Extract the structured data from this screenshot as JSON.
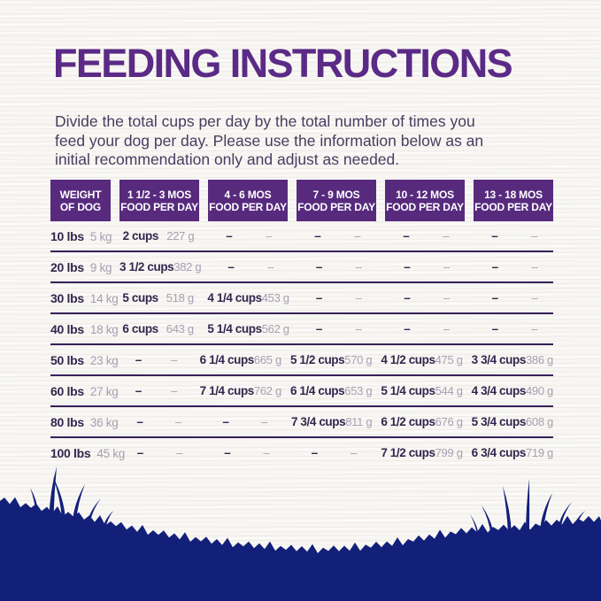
{
  "page": {
    "title": "FEEDING INSTRUCTIONS",
    "intro_lines": [
      "Divide the total cups per day by the total number of times you",
      "feed your dog per day. Please use the information below as an",
      "initial recommendation only and adjust as needed."
    ]
  },
  "table": {
    "headers": [
      {
        "line1": "WEIGHT",
        "line2": "OF DOG"
      },
      {
        "line1": "1 1/2 - 3 MOS",
        "line2": "FOOD PER DAY"
      },
      {
        "line1": "4 - 6 MOS",
        "line2": "FOOD PER DAY"
      },
      {
        "line1": "7 - 9 MOS",
        "line2": "FOOD PER DAY"
      },
      {
        "line1": "10 - 12 MOS",
        "line2": "FOOD PER DAY"
      },
      {
        "line1": "13 - 18 MOS",
        "line2": "FOOD PER DAY"
      }
    ],
    "rows": [
      {
        "lbs": "10 lbs",
        "kg": "5 kg",
        "cells": [
          {
            "cups": "2 cups",
            "grams": "227 g"
          },
          {
            "cups": "–",
            "grams": "–"
          },
          {
            "cups": "–",
            "grams": "–"
          },
          {
            "cups": "–",
            "grams": "–"
          },
          {
            "cups": "–",
            "grams": "–"
          }
        ]
      },
      {
        "lbs": "20 lbs",
        "kg": "9 kg",
        "cells": [
          {
            "cups": "3 1/2 cups",
            "grams": "382 g"
          },
          {
            "cups": "–",
            "grams": "–"
          },
          {
            "cups": "–",
            "grams": "–"
          },
          {
            "cups": "–",
            "grams": "–"
          },
          {
            "cups": "–",
            "grams": "–"
          }
        ]
      },
      {
        "lbs": "30 lbs",
        "kg": "14 kg",
        "cells": [
          {
            "cups": "5 cups",
            "grams": "518 g"
          },
          {
            "cups": "4 1/4 cups",
            "grams": "453 g"
          },
          {
            "cups": "–",
            "grams": "–"
          },
          {
            "cups": "–",
            "grams": "–"
          },
          {
            "cups": "–",
            "grams": "–"
          }
        ]
      },
      {
        "lbs": "40 lbs",
        "kg": "18 kg",
        "cells": [
          {
            "cups": "6 cups",
            "grams": "643 g"
          },
          {
            "cups": "5 1/4 cups",
            "grams": "562 g"
          },
          {
            "cups": "–",
            "grams": "–"
          },
          {
            "cups": "–",
            "grams": "–"
          },
          {
            "cups": "–",
            "grams": "–"
          }
        ]
      },
      {
        "lbs": "50 lbs",
        "kg": "23 kg",
        "cells": [
          {
            "cups": "–",
            "grams": "–"
          },
          {
            "cups": "6 1/4 cups",
            "grams": "665 g"
          },
          {
            "cups": "5 1/2 cups",
            "grams": "570 g"
          },
          {
            "cups": "4 1/2 cups",
            "grams": "475 g"
          },
          {
            "cups": "3 3/4 cups",
            "grams": "386 g"
          }
        ]
      },
      {
        "lbs": "60 lbs",
        "kg": "27 kg",
        "cells": [
          {
            "cups": "–",
            "grams": "–"
          },
          {
            "cups": "7 1/4 cups",
            "grams": "762 g"
          },
          {
            "cups": "6 1/4 cups",
            "grams": "653 g"
          },
          {
            "cups": "5 1/4 cups",
            "grams": "544 g"
          },
          {
            "cups": "4 3/4 cups",
            "grams": "490 g"
          }
        ]
      },
      {
        "lbs": "80 lbs",
        "kg": "36 kg",
        "cells": [
          {
            "cups": "–",
            "grams": "–"
          },
          {
            "cups": "–",
            "grams": "–"
          },
          {
            "cups": "7 3/4 cups",
            "grams": "811 g"
          },
          {
            "cups": "6 1/2 cups",
            "grams": "676 g"
          },
          {
            "cups": "5 3/4 cups",
            "grams": "608 g"
          }
        ]
      },
      {
        "lbs": "100 lbs",
        "kg": "45 kg",
        "cells": [
          {
            "cups": "–",
            "grams": "–"
          },
          {
            "cups": "–",
            "grams": "–"
          },
          {
            "cups": "–",
            "grams": "–"
          },
          {
            "cups": "7 1/2 cups",
            "grams": "799 g"
          },
          {
            "cups": "6 3/4 cups",
            "grams": "719 g"
          }
        ]
      }
    ]
  },
  "colors": {
    "title_purple": "#5b2a86",
    "header_bg": "#572a7e",
    "header_text": "#ffffff",
    "bold_text": "#33264e",
    "light_text": "#a89eb2",
    "row_divider": "#372059",
    "intro_text": "#483c60",
    "grass_navy": "#13207a",
    "background": "#f7f6f2"
  }
}
